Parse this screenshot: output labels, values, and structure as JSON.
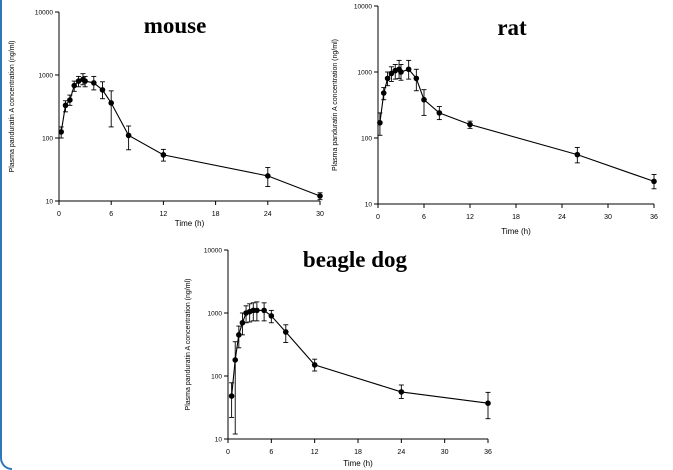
{
  "chart_data": [
    {
      "type": "scatter",
      "title": "mouse",
      "xlabel": "Time (h)",
      "ylabel": "Plasma panduratin A concentration (ng/ml)",
      "xlim": [
        0,
        30
      ],
      "ylim": [
        10,
        10000
      ],
      "yscale": "log",
      "xticks": [
        0,
        6,
        12,
        18,
        24,
        30
      ],
      "yticks": [
        10,
        100,
        1000,
        10000
      ],
      "grid": false,
      "points": [
        {
          "x": 0.25,
          "y": 125,
          "lo": 100,
          "hi": 150
        },
        {
          "x": 0.75,
          "y": 330,
          "lo": 260,
          "hi": 390
        },
        {
          "x": 1.25,
          "y": 400,
          "lo": 330,
          "hi": 480
        },
        {
          "x": 1.75,
          "y": 680,
          "lo": 550,
          "hi": 800
        },
        {
          "x": 2.25,
          "y": 800,
          "lo": 650,
          "hi": 950
        },
        {
          "x": 2.75,
          "y": 850,
          "lo": 700,
          "hi": 1050
        },
        {
          "x": 3.0,
          "y": 800,
          "lo": 650,
          "hi": 950
        },
        {
          "x": 4.0,
          "y": 750,
          "lo": 580,
          "hi": 950
        },
        {
          "x": 5.0,
          "y": 580,
          "lo": 420,
          "hi": 780
        },
        {
          "x": 6.0,
          "y": 360,
          "lo": 150,
          "hi": 560
        },
        {
          "x": 8.0,
          "y": 110,
          "lo": 65,
          "hi": 155
        },
        {
          "x": 12.0,
          "y": 54,
          "lo": 43,
          "hi": 66
        },
        {
          "x": 24.0,
          "y": 25,
          "lo": 17,
          "hi": 34
        },
        {
          "x": 30.0,
          "y": 12,
          "lo": 10.5,
          "hi": 13.5
        }
      ]
    },
    {
      "type": "scatter",
      "title": "rat",
      "xlabel": "Time (h)",
      "ylabel": "Plasma panduratin A concentration (ng/ml)",
      "xlim": [
        0,
        36
      ],
      "ylim": [
        10,
        10000
      ],
      "yscale": "log",
      "xticks": [
        0,
        6,
        12,
        18,
        24,
        30,
        36
      ],
      "yticks": [
        10,
        100,
        1000,
        10000
      ],
      "grid": false,
      "points": [
        {
          "x": 0.25,
          "y": 170,
          "lo": 110,
          "hi": 240
        },
        {
          "x": 0.75,
          "y": 480,
          "lo": 380,
          "hi": 580
        },
        {
          "x": 1.25,
          "y": 800,
          "lo": 620,
          "hi": 1000
        },
        {
          "x": 1.75,
          "y": 950,
          "lo": 720,
          "hi": 1200
        },
        {
          "x": 2.25,
          "y": 1050,
          "lo": 780,
          "hi": 1300
        },
        {
          "x": 2.75,
          "y": 1100,
          "lo": 800,
          "hi": 1500
        },
        {
          "x": 3.0,
          "y": 1000,
          "lo": 750,
          "hi": 1300
        },
        {
          "x": 4.0,
          "y": 1100,
          "lo": 780,
          "hi": 1500
        },
        {
          "x": 5.0,
          "y": 800,
          "lo": 520,
          "hi": 1100
        },
        {
          "x": 6.0,
          "y": 380,
          "lo": 220,
          "hi": 540
        },
        {
          "x": 8.0,
          "y": 240,
          "lo": 190,
          "hi": 300
        },
        {
          "x": 12.0,
          "y": 160,
          "lo": 140,
          "hi": 180
        },
        {
          "x": 26.0,
          "y": 56,
          "lo": 42,
          "hi": 72
        },
        {
          "x": 36.0,
          "y": 22,
          "lo": 17,
          "hi": 28
        }
      ]
    },
    {
      "type": "scatter",
      "title": "beagle dog",
      "xlabel": "Time (h)",
      "ylabel": "Plasma panduratin A concentration (ng/ml)",
      "xlim": [
        0,
        36
      ],
      "ylim": [
        10,
        10000
      ],
      "yscale": "log",
      "xticks": [
        0,
        6,
        12,
        18,
        24,
        30,
        36
      ],
      "yticks": [
        10,
        100,
        1000,
        10000
      ],
      "grid": false,
      "points": [
        {
          "x": 0.5,
          "y": 48,
          "lo": 22,
          "hi": 78
        },
        {
          "x": 1.0,
          "y": 180,
          "lo": 12,
          "hi": 350
        },
        {
          "x": 1.5,
          "y": 450,
          "lo": 280,
          "hi": 620
        },
        {
          "x": 2.0,
          "y": 700,
          "lo": 450,
          "hi": 1000
        },
        {
          "x": 2.5,
          "y": 1000,
          "lo": 700,
          "hi": 1300
        },
        {
          "x": 3.0,
          "y": 1050,
          "lo": 720,
          "hi": 1400
        },
        {
          "x": 3.5,
          "y": 1100,
          "lo": 750,
          "hi": 1450
        },
        {
          "x": 4.0,
          "y": 1100,
          "lo": 750,
          "hi": 1500
        },
        {
          "x": 5.0,
          "y": 1100,
          "lo": 750,
          "hi": 1450
        },
        {
          "x": 6.0,
          "y": 900,
          "lo": 700,
          "hi": 1100
        },
        {
          "x": 8.0,
          "y": 500,
          "lo": 340,
          "hi": 650
        },
        {
          "x": 12.0,
          "y": 150,
          "lo": 120,
          "hi": 185
        },
        {
          "x": 24.0,
          "y": 56,
          "lo": 44,
          "hi": 72
        },
        {
          "x": 36.0,
          "y": 37,
          "lo": 21,
          "hi": 55
        }
      ]
    }
  ],
  "colors": {
    "mark": "#000000",
    "frame_accent": "#2e78b8",
    "background": "#ffffff"
  }
}
